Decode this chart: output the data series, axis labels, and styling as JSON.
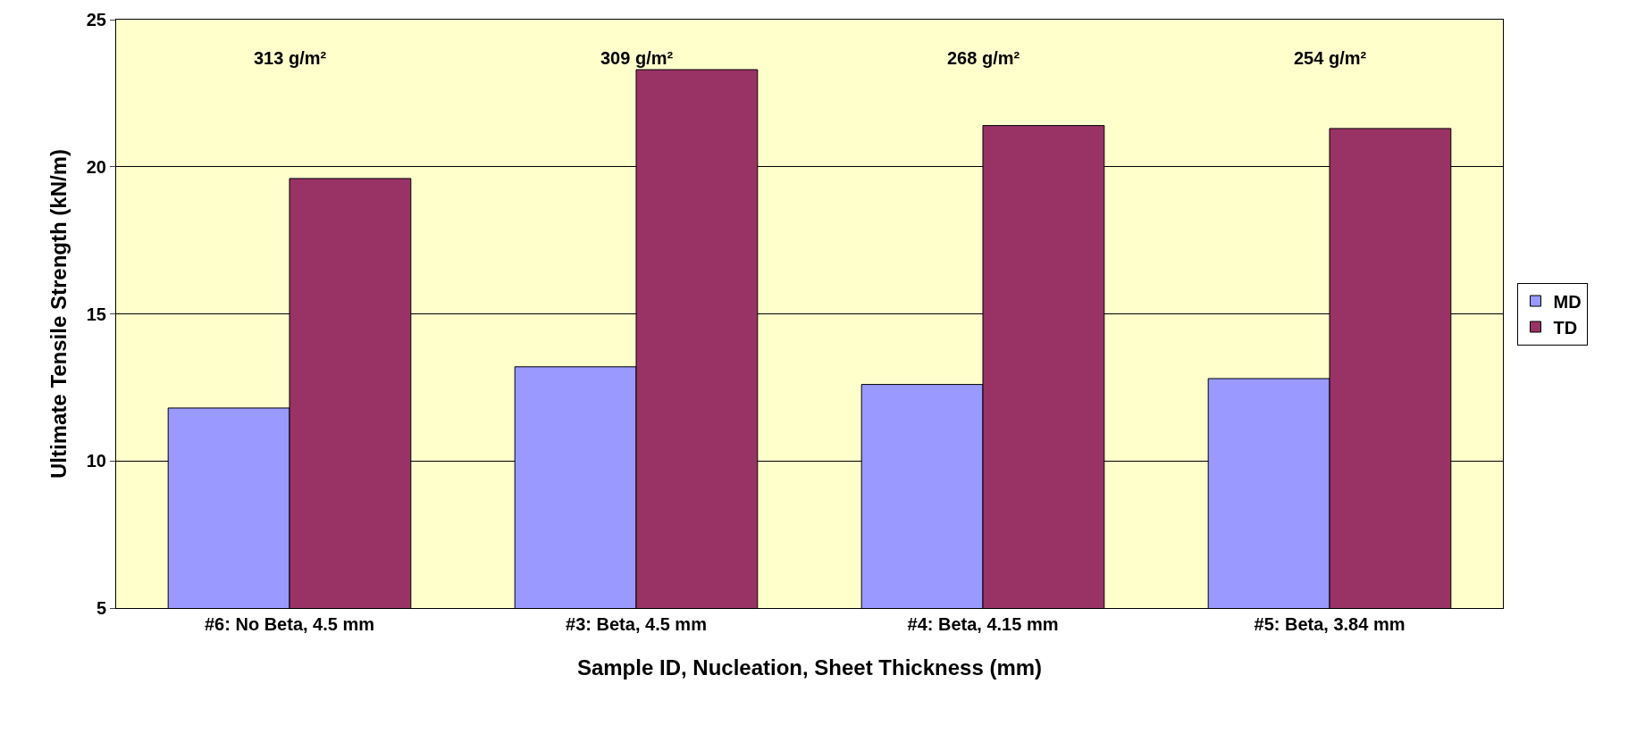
{
  "chart_data": {
    "type": "bar",
    "xlabel": "Sample ID, Nucleation, Sheet Thickness (mm)",
    "ylabel": "Ultimate Tensile Strength (kN/m)",
    "categories": [
      "#6: No Beta, 4.5 mm",
      "#3: Beta, 4.5 mm",
      "#4: Beta, 4.15 mm",
      "#5: Beta, 3.84 mm"
    ],
    "series": [
      {
        "name": "MD",
        "color": "#9999ff",
        "values": [
          11.8,
          13.2,
          12.6,
          12.8
        ]
      },
      {
        "name": "TD",
        "color": "#993366",
        "values": [
          19.6,
          23.3,
          21.4,
          21.3
        ]
      }
    ],
    "ylim": [
      5,
      25
    ],
    "yticks": [
      5,
      10,
      15,
      20,
      25
    ],
    "grid": "y",
    "legend": "right",
    "annotations": [
      "313 g/m²",
      "309 g/m²",
      "268 g/m²",
      "254 g/m²"
    ]
  }
}
